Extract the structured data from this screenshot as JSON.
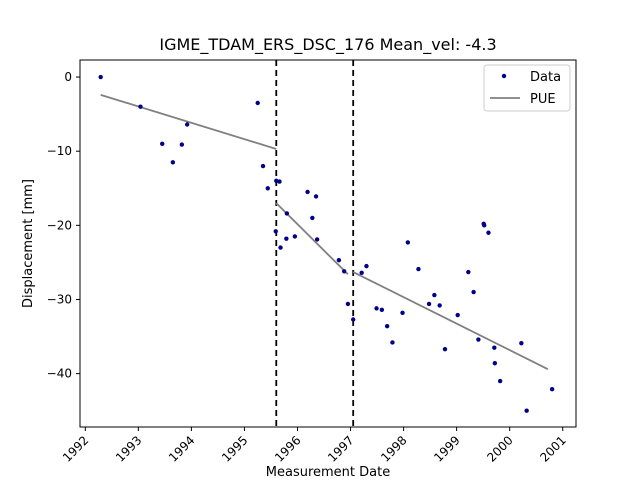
{
  "chart_data": {
    "type": "scatter",
    "title": "IGME_TDAM_ERS_DSC_176     Mean_vel: -4.3",
    "xlabel": "Measurement Date",
    "ylabel": "Displacement [mm]",
    "xlim": [
      1991.9,
      2001.25
    ],
    "ylim": [
      -47.2,
      2.3
    ],
    "xticks": [
      1992,
      1993,
      1994,
      1995,
      1996,
      1997,
      1998,
      1999,
      2000,
      2001
    ],
    "yticks": [
      0,
      -10,
      -20,
      -30,
      -40
    ],
    "xtick_labels": [
      "1992",
      "1993",
      "1994",
      "1995",
      "1996",
      "1997",
      "1998",
      "1999",
      "2000",
      "2001"
    ],
    "ytick_labels": [
      "0",
      "−10",
      "−20",
      "−30",
      "−40"
    ],
    "grid": false,
    "legend_position": "top-right",
    "series": [
      {
        "name": "Data",
        "kind": "points",
        "color": "#00008b",
        "points": [
          [
            1992.29,
            0.0
          ],
          [
            1993.04,
            -4.0
          ],
          [
            1993.45,
            -9.0
          ],
          [
            1993.65,
            -11.5
          ],
          [
            1993.82,
            -9.1
          ],
          [
            1993.92,
            -6.4
          ],
          [
            1995.25,
            -3.5
          ],
          [
            1995.35,
            -12.0
          ],
          [
            1995.44,
            -15.0
          ],
          [
            1995.59,
            -20.8
          ],
          [
            1995.6,
            -14.0
          ],
          [
            1995.66,
            -14.1
          ],
          [
            1995.68,
            -23.0
          ],
          [
            1995.79,
            -21.8
          ],
          [
            1995.8,
            -18.4
          ],
          [
            1995.95,
            -21.5
          ],
          [
            1996.19,
            -15.5
          ],
          [
            1996.28,
            -19.0
          ],
          [
            1996.35,
            -16.1
          ],
          [
            1996.37,
            -21.9
          ],
          [
            1996.78,
            -24.7
          ],
          [
            1996.88,
            -26.2
          ],
          [
            1996.95,
            -30.6
          ],
          [
            1997.05,
            -32.7
          ],
          [
            1997.21,
            -26.4
          ],
          [
            1997.3,
            -25.5
          ],
          [
            1997.49,
            -31.2
          ],
          [
            1997.59,
            -31.4
          ],
          [
            1997.69,
            -33.6
          ],
          [
            1997.79,
            -35.8
          ],
          [
            1997.98,
            -31.8
          ],
          [
            1998.08,
            -22.3
          ],
          [
            1998.28,
            -25.9
          ],
          [
            1998.48,
            -30.6
          ],
          [
            1998.58,
            -29.4
          ],
          [
            1998.68,
            -30.8
          ],
          [
            1998.78,
            -36.7
          ],
          [
            1999.02,
            -32.1
          ],
          [
            1999.22,
            -26.3
          ],
          [
            1999.32,
            -29.0
          ],
          [
            1999.41,
            -35.4
          ],
          [
            1999.51,
            -19.8
          ],
          [
            1999.52,
            -20.0
          ],
          [
            1999.6,
            -21.0
          ],
          [
            1999.71,
            -36.5
          ],
          [
            1999.72,
            -38.6
          ],
          [
            1999.82,
            -41.0
          ],
          [
            2000.22,
            -35.9
          ],
          [
            2000.32,
            -45.0
          ],
          [
            2000.8,
            -42.1
          ]
        ]
      },
      {
        "name": "PUE",
        "kind": "segments",
        "color": "#808080",
        "segments": [
          [
            [
              1992.29,
              -2.4
            ],
            [
              1995.6,
              -9.7
            ]
          ],
          [
            [
              1995.6,
              -17.0
            ],
            [
              1996.95,
              -26.6
            ]
          ],
          [
            [
              1997.05,
              -26.3
            ],
            [
              2000.72,
              -39.4
            ]
          ]
        ]
      }
    ],
    "vlines": [
      1995.6,
      1997.05
    ]
  }
}
